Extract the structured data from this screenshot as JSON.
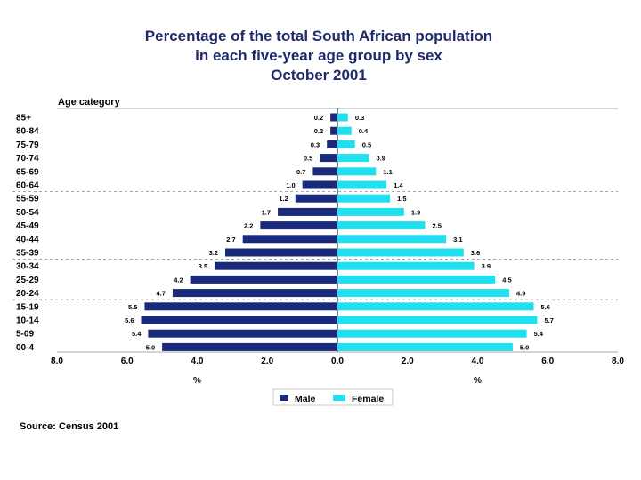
{
  "chart_data": {
    "type": "bar",
    "orientation": "horizontal-population-pyramid",
    "title": [
      "Percentage of the total South African population",
      "in each five-year age group by sex",
      "October 2001"
    ],
    "y_axis_title": "Age category",
    "x_axis_label": "%",
    "x_ticks": [
      "8.0",
      "6.0",
      "4.0",
      "2.0",
      "0.0",
      "2.0",
      "4.0",
      "6.0",
      "8.0"
    ],
    "xlim": [
      -8,
      8
    ],
    "categories": [
      "85+",
      "80-84",
      "75-79",
      "70-74",
      "65-69",
      "60-64",
      "55-59",
      "50-54",
      "45-49",
      "40-44",
      "35-39",
      "30-34",
      "25-29",
      "20-24",
      "15-19",
      "10-14",
      "5-09",
      "00-4"
    ],
    "series": [
      {
        "name": "Male",
        "color": "#1a2a7a",
        "values": [
          0.2,
          0.2,
          0.3,
          0.5,
          0.7,
          1.0,
          1.2,
          1.7,
          2.2,
          2.7,
          3.2,
          3.5,
          4.2,
          4.7,
          5.5,
          5.6,
          5.4,
          5.0
        ]
      },
      {
        "name": "Female",
        "color": "#20e0f0",
        "values": [
          0.3,
          0.4,
          0.5,
          0.9,
          1.1,
          1.4,
          1.5,
          1.9,
          2.5,
          3.1,
          3.6,
          3.9,
          4.5,
          4.9,
          5.6,
          5.7,
          5.4,
          5.0
        ]
      }
    ],
    "grid": "dashed separators after 60-64, 35-39, 20-24",
    "legend": "bottom-center"
  },
  "source": "Source: Census 2001"
}
